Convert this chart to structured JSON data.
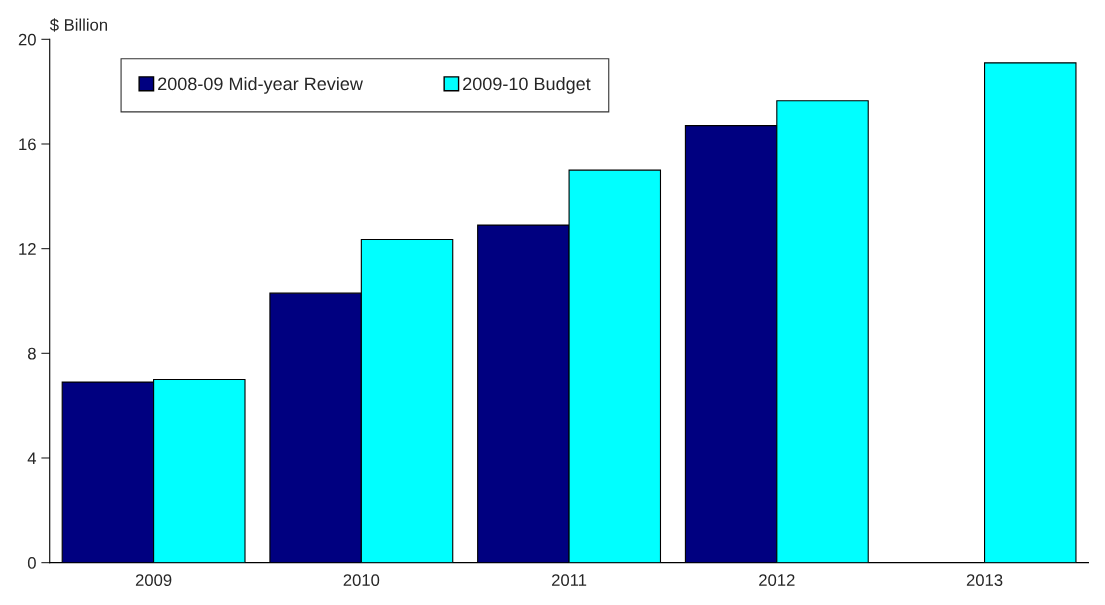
{
  "chart_data": {
    "type": "bar",
    "ylabel": "$ Billion",
    "categories": [
      "2009",
      "2010",
      "2011",
      "2012",
      "2013"
    ],
    "series": [
      {
        "name": "2008-09 Mid-year Review",
        "color": "#000080",
        "values": [
          6.9,
          10.3,
          12.9,
          16.7,
          null
        ]
      },
      {
        "name": "2009-10 Budget",
        "color": "#00ffff",
        "values": [
          7.0,
          12.35,
          15.0,
          17.65,
          19.1
        ]
      }
    ],
    "ylim": [
      0,
      20
    ],
    "yticks": [
      0,
      4,
      8,
      12,
      16,
      20
    ],
    "grid": false,
    "legend": "top left"
  }
}
